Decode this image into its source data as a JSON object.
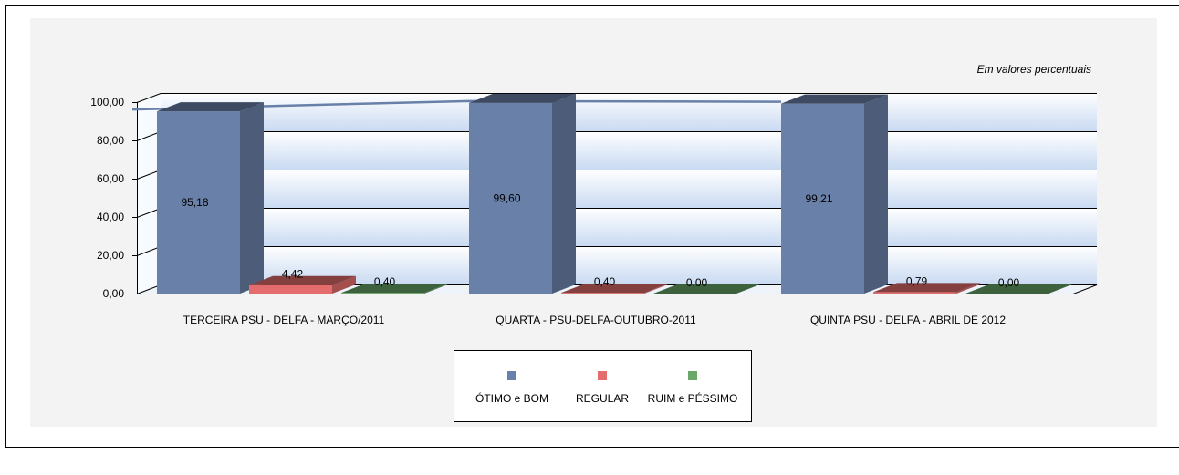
{
  "chart_data": {
    "type": "bar",
    "three_d": true,
    "annotation": "Em valores percentuais",
    "categories": [
      "TERCEIRA PSU - DELFA - MARÇO/2011",
      "QUARTA - PSU-DELFA-OUTUBRO-2011",
      "QUINTA PSU - DELFA - ABRIL DE 2012"
    ],
    "series": [
      {
        "name": "ÓTIMO e BOM",
        "values": [
          95.18,
          99.6,
          99.21
        ],
        "labels": [
          "95,18",
          "99,60",
          "99,21"
        ],
        "color": "#6980a8"
      },
      {
        "name": "REGULAR",
        "values": [
          4.42,
          0.4,
          0.79
        ],
        "labels": [
          "4,42",
          "0,40",
          "0,79"
        ],
        "color": "#e46c6c"
      },
      {
        "name": "RUIM e PÉSSIMO",
        "values": [
          0.4,
          0.0,
          0.0
        ],
        "labels": [
          "0,40",
          "0,00",
          "0,00"
        ],
        "color": "#6aa86a"
      }
    ],
    "ylim": [
      0,
      100
    ],
    "yticks": [
      0,
      20,
      40,
      60,
      80,
      100
    ],
    "ytick_labels": [
      "0,00",
      "20,00",
      "40,00",
      "60,00",
      "80,00",
      "100,00"
    ],
    "grid": true,
    "legend_position": "bottom"
  }
}
